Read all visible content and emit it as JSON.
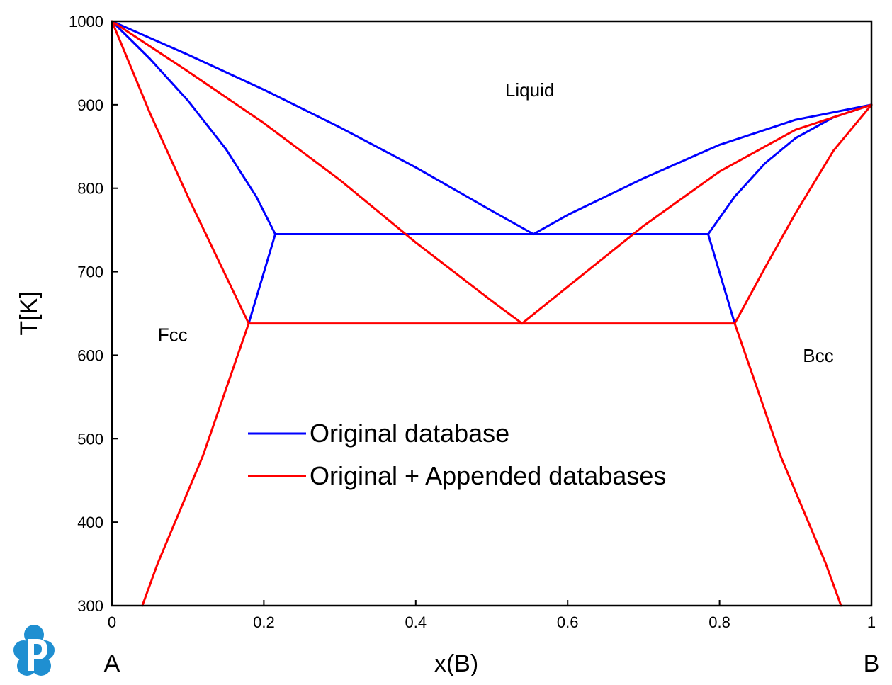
{
  "chart_data": {
    "type": "line",
    "xlabel": "x(B)",
    "ylabel": "T[K]",
    "xlim": [
      0,
      1
    ],
    "ylim": [
      300,
      1000
    ],
    "xticks": [
      "0",
      "0.2",
      "0.4",
      "0.6",
      "0.8",
      "1"
    ],
    "yticks": [
      "300",
      "400",
      "500",
      "600",
      "700",
      "800",
      "900",
      "1000"
    ],
    "grid": false,
    "legend_position": "center",
    "end_labels": {
      "left": "A",
      "right": "B"
    },
    "region_labels": [
      {
        "text": "Liquid",
        "x": 0.55,
        "y": 910
      },
      {
        "text": "Fcc",
        "x": 0.08,
        "y": 617
      },
      {
        "text": "Bcc",
        "x": 0.93,
        "y": 592
      }
    ],
    "series": [
      {
        "name": "Original database",
        "color": "#0000ff",
        "lines": [
          [
            [
              0,
              1000
            ],
            [
              0.1,
              960
            ],
            [
              0.2,
              918
            ],
            [
              0.3,
              873
            ],
            [
              0.4,
              825
            ],
            [
              0.5,
              773
            ],
            [
              0.555,
              745
            ]
          ],
          [
            [
              0,
              1000
            ],
            [
              0.05,
              955
            ],
            [
              0.1,
              905
            ],
            [
              0.15,
              847
            ],
            [
              0.19,
              790
            ],
            [
              0.215,
              745
            ]
          ],
          [
            [
              0.555,
              745
            ],
            [
              0.6,
              768
            ],
            [
              0.7,
              812
            ],
            [
              0.8,
              852
            ],
            [
              0.9,
              882
            ],
            [
              1,
              900
            ]
          ],
          [
            [
              0.785,
              745
            ],
            [
              0.82,
              790
            ],
            [
              0.86,
              830
            ],
            [
              0.9,
              860
            ],
            [
              0.95,
              885
            ],
            [
              1,
              900
            ]
          ],
          [
            [
              0.215,
              745
            ],
            [
              0.785,
              745
            ]
          ],
          [
            [
              0.215,
              745
            ],
            [
              0.18,
              638
            ]
          ],
          [
            [
              0.785,
              745
            ],
            [
              0.82,
              638
            ]
          ]
        ]
      },
      {
        "name": "Original + Appended databases",
        "color": "#ff0000",
        "lines": [
          [
            [
              0,
              1000
            ],
            [
              0.1,
              940
            ],
            [
              0.2,
              878
            ],
            [
              0.3,
              810
            ],
            [
              0.4,
              735
            ],
            [
              0.5,
              665
            ],
            [
              0.54,
              638
            ]
          ],
          [
            [
              0,
              1000
            ],
            [
              0.05,
              890
            ],
            [
              0.1,
              790
            ],
            [
              0.15,
              695
            ],
            [
              0.18,
              638
            ]
          ],
          [
            [
              0.54,
              638
            ],
            [
              0.6,
              682
            ],
            [
              0.7,
              755
            ],
            [
              0.8,
              820
            ],
            [
              0.9,
              870
            ],
            [
              1,
              900
            ]
          ],
          [
            [
              0.82,
              638
            ],
            [
              0.86,
              705
            ],
            [
              0.9,
              770
            ],
            [
              0.95,
              845
            ],
            [
              1,
              900
            ]
          ],
          [
            [
              0.18,
              638
            ],
            [
              0.82,
              638
            ]
          ],
          [
            [
              0.18,
              638
            ],
            [
              0.12,
              480
            ],
            [
              0.06,
              350
            ],
            [
              0.04,
              300
            ]
          ],
          [
            [
              0.82,
              638
            ],
            [
              0.88,
              480
            ],
            [
              0.94,
              350
            ],
            [
              0.96,
              300
            ]
          ]
        ]
      }
    ]
  }
}
